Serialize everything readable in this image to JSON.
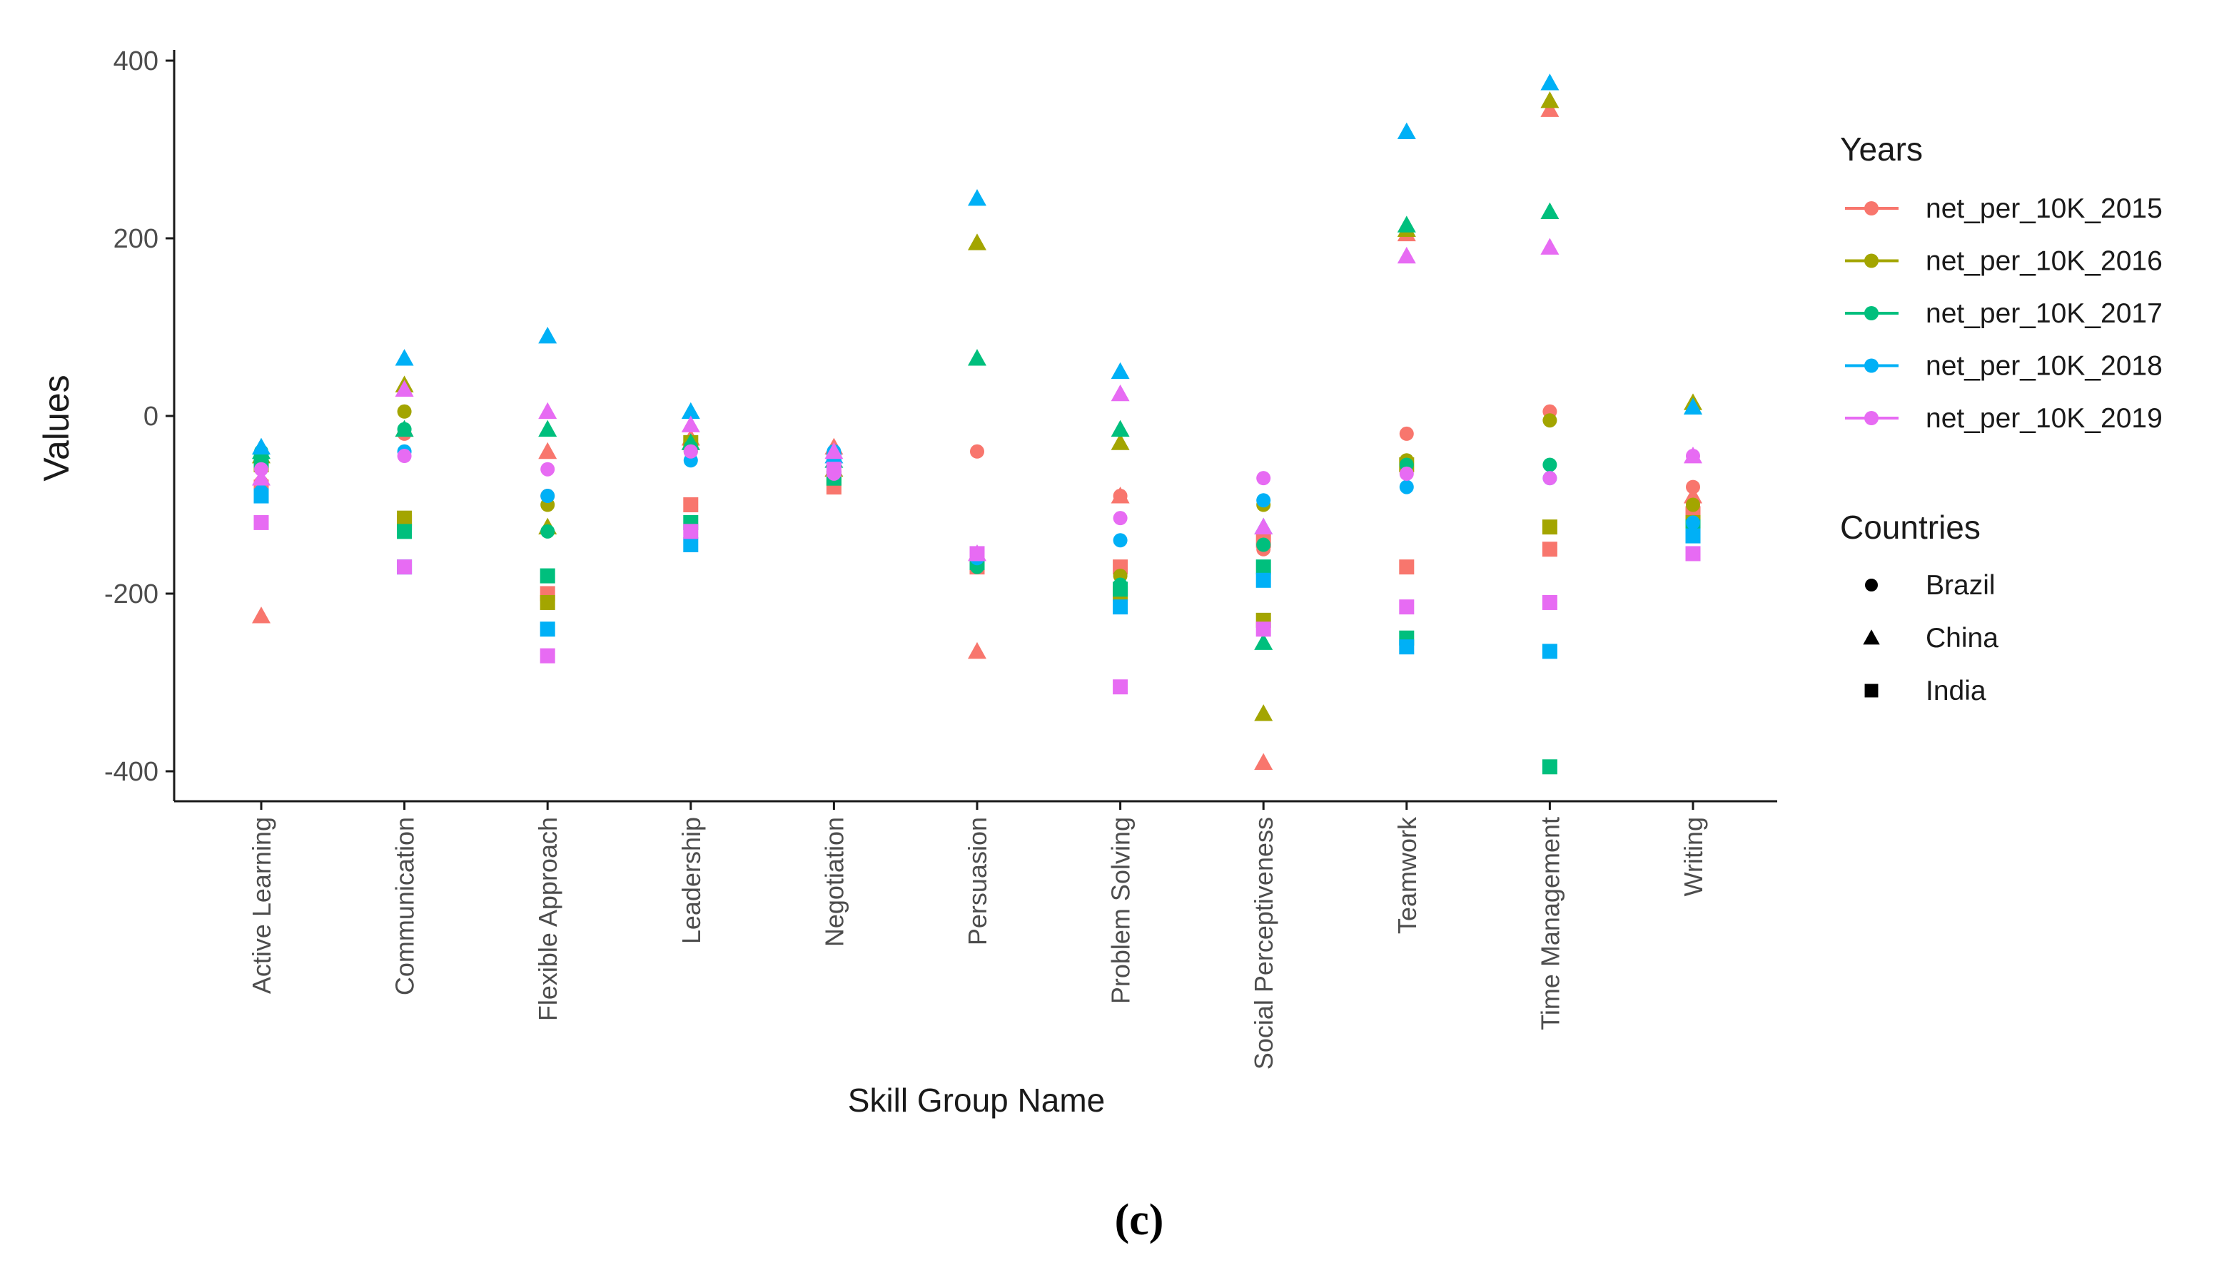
{
  "caption": "(c)",
  "chart_data": {
    "type": "scatter",
    "xlabel": "Skill Group Name",
    "ylabel": "Values",
    "ylim": [
      -430,
      405
    ],
    "yticks": [
      400,
      200,
      0,
      -200,
      -400
    ],
    "categories": [
      "Active Learning",
      "Communication",
      "Flexible Approach",
      "Leadership",
      "Negotiation",
      "Persuasion",
      "Problem Solving",
      "Social Perceptiveness",
      "Teamwork",
      "Time Management",
      "Writing"
    ],
    "legend_years_title": "Years",
    "legend_countries_title": "Countries",
    "series": [
      {
        "name": "net_per_10K_2015",
        "color": "#F8766D",
        "values": {
          "Brazil": [
            -75,
            -20,
            -90,
            -35,
            -45,
            -40,
            -90,
            -150,
            -20,
            5,
            -80
          ],
          "China": [
            -225,
            -15,
            -40,
            -25,
            -35,
            -265,
            -90,
            -390,
            205,
            345,
            -90
          ],
          "India": [
            -80,
            -120,
            -200,
            -100,
            -80,
            -170,
            -170,
            -140,
            -170,
            -150,
            -110
          ]
        }
      },
      {
        "name": "net_per_10K_2016",
        "color": "#A3A500",
        "values": {
          "Brazil": [
            -50,
            5,
            -100,
            -40,
            -55,
            -160,
            -180,
            -100,
            -50,
            -5,
            -100
          ],
          "China": [
            -45,
            35,
            -125,
            -30,
            -60,
            195,
            -30,
            -335,
            210,
            355,
            15
          ],
          "India": [
            -55,
            -115,
            -210,
            -30,
            -70,
            -165,
            -200,
            -230,
            -55,
            -125,
            -120
          ]
        }
      },
      {
        "name": "net_per_10K_2017",
        "color": "#00BF7D",
        "values": {
          "Brazil": [
            -40,
            -15,
            -130,
            -35,
            -50,
            -170,
            -190,
            -145,
            -55,
            -55,
            -135
          ],
          "China": [
            -40,
            -15,
            -15,
            -30,
            -50,
            65,
            -15,
            -255,
            215,
            230,
            10
          ],
          "India": [
            -50,
            -130,
            -180,
            -120,
            -70,
            -165,
            -195,
            -170,
            -250,
            -395,
            -125
          ]
        }
      },
      {
        "name": "net_per_10K_2018",
        "color": "#00B0F6",
        "values": {
          "Brazil": [
            -85,
            -40,
            -90,
            -50,
            -40,
            -160,
            -140,
            -95,
            -80,
            -70,
            -120
          ],
          "China": [
            -35,
            65,
            90,
            5,
            -45,
            245,
            50,
            -125,
            320,
            375,
            10
          ],
          "India": [
            -90,
            -170,
            -240,
            -145,
            -50,
            -155,
            -215,
            -185,
            -260,
            -265,
            -135
          ]
        }
      },
      {
        "name": "net_per_10K_2019",
        "color": "#E76BF3",
        "values": {
          "Brazil": [
            -60,
            -45,
            -60,
            -40,
            -65,
            -155,
            -115,
            -70,
            -65,
            -70,
            -45
          ],
          "China": [
            -70,
            30,
            5,
            -10,
            -40,
            -155,
            25,
            -125,
            180,
            190,
            -45
          ],
          "India": [
            -120,
            -170,
            -270,
            -130,
            -60,
            -155,
            -305,
            -240,
            -215,
            -210,
            -155
          ]
        }
      }
    ],
    "countries": [
      {
        "name": "Brazil",
        "shape": "circle"
      },
      {
        "name": "China",
        "shape": "triangle"
      },
      {
        "name": "India",
        "shape": "square"
      }
    ]
  }
}
